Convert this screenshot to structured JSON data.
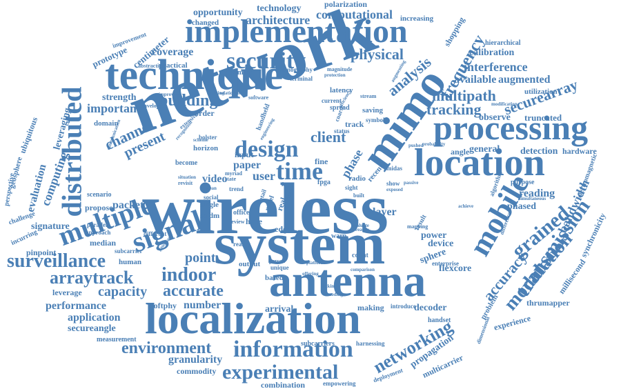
{
  "cloud": {
    "color": "#4a7fb5",
    "background": "#ffffff",
    "words": {
      "network": "network",
      "wireless": "wireless",
      "system": "system",
      "localization": "localization",
      "antenna": "antenna",
      "implementation": "implementation",
      "technique": "technique",
      "processing": "processing",
      "location": "location",
      "mimo": "mimo",
      "mobile": "mobile",
      "distributed": "distributed",
      "multiple": "multiple",
      "signal": "signal",
      "information": "information",
      "experimental": "experimental",
      "design": "design",
      "time": "time",
      "security": "security",
      "environment": "environment",
      "arraytrack": "arraytrack",
      "indoor": "indoor",
      "accurate": "accurate",
      "surveillance": "surveillance",
      "transmission": "transmission",
      "modulation": "modulation",
      "accuracy": "accuracy",
      "grained": "grained",
      "networking": "networking",
      "frequency": "frequency",
      "analysis": "analysis",
      "multipath": "multipath",
      "tracking": "tracking",
      "securearray": "securearray",
      "computational": "computational",
      "architecture": "architecture",
      "opportunity": "opportunity",
      "technology": "technology",
      "polarization": "polarization",
      "physical": "physical",
      "interference": "interference",
      "available": "available",
      "augmented": "augmented",
      "calibration": "calibration",
      "hierarchical": "hierarchical",
      "increasing": "increasing",
      "shopping": "shopping",
      "coverage": "coverage",
      "roaming": "roaming",
      "prototype": "prototype",
      "centimeter": "centimeter",
      "improvement": "improvement",
      "abstraction": "abstraction",
      "practical": "practical",
      "tomography": "tomography",
      "magnitude": "magnitude",
      "changed": "changed",
      "building": "building",
      "strength": "strength",
      "important": "important",
      "channel": "channel",
      "present": "present",
      "computing": "computing",
      "evaluation": "evaluation",
      "leveraging": "leveraging",
      "ubiquitous": "ubiquitous",
      "geosphere": "geosphere",
      "perspective": "perspective",
      "challenge": "challenge",
      "pinpoint": "pinpoint",
      "incurring": "incurring",
      "signature": "signature",
      "median": "median",
      "propose": "propose",
      "packet": "packet",
      "video": "video",
      "point": "point",
      "leverage": "leverage",
      "capacity": "capacity",
      "performance": "performance",
      "application": "application",
      "secureangle": "secureangle",
      "measurement": "measurement",
      "softphy": "softphy",
      "number": "number",
      "granularity": "granularity",
      "commodity": "commodity",
      "combination": "combination",
      "empowering": "empowering",
      "deployment": "deployment",
      "multicarrier": "multicarrier",
      "propagation": "propagation",
      "decoder": "decoder",
      "arrival": "arrival",
      "making": "making",
      "handset": "handset",
      "problem": "problem",
      "experience": "experience",
      "thrumapper": "thrumapper",
      "millisecond": "millisecond",
      "synchronicity": "synchronicity",
      "bandwidth": "bandwidth",
      "electromagnetic": "electromagnetic",
      "phased": "phased",
      "reading": "reading",
      "purpose": "purpose",
      "power": "power",
      "device": "device",
      "result": "result",
      "sphere": "sphere",
      "flexcore": "flexcore",
      "enterprise": "enterprise",
      "layer": "layer",
      "general": "general",
      "angle": "angle",
      "detection": "detection",
      "hardware": "hardware",
      "truncated": "truncated",
      "observe": "observe",
      "utilization": "utilization",
      "client": "client",
      "phase": "phase",
      "user": "user",
      "paper": "paper",
      "input": "input",
      "order": "order",
      "domain": "domain",
      "horizon": "horizon",
      "become": "become",
      "subcarrier": "subcarrier",
      "human": "human",
      "scenario": "scenario",
      "parallel": "parallel",
      "approach": "approach",
      "different": "different",
      "output": "output",
      "based": "based",
      "edge": "edge",
      "have": "have",
      "reality": "reality",
      "count": "count",
      "latency": "latency",
      "current": "current",
      "spread": "spread",
      "track": "track",
      "saving": "saving",
      "symbol": "symbol",
      "radio": "radio",
      "recent": "recent",
      "show": "show",
      "sight": "sight",
      "fine": "fine",
      "midas": "midas",
      "subcarriers": "subcarriers",
      "harnessing": "harnessing",
      "introduce": "introduce",
      "terminal": "terminal",
      "software": "software",
      "handheld": "handheld",
      "bolster": "bolster",
      "single": "single",
      "social": "social",
      "sefdm": "sefdm",
      "state": "state",
      "retail": "retail",
      "office": "office",
      "warp": "warp",
      "coarse": "coarse",
      "status": "status",
      "mapping": "mapping",
      "envelope": "envelope",
      "extensive": "extensive",
      "protection": "protection",
      "efficiency": "efficiency",
      "simultaneous": "simultaneous",
      "reader": "reader",
      "passive": "passive",
      "fpga": "fpga",
      "free": "free",
      "novel": "novel",
      "real": "real",
      "built": "built",
      "fade": "fade",
      "stream": "stream",
      "trend": "trend",
      "clear": "clear",
      "wall": "wall",
      "review": "review",
      "myriad": "myriad",
      "situation": "situation",
      "revisit": "revisit",
      "glean": "glean",
      "gaussian": "gaussian",
      "recognition": "recognition",
      "auditing": "auditing",
      "unique": "unique",
      "person": "person",
      "modification": "modification",
      "improving": "improving",
      "scheme": "scheme",
      "relationship": "relationship",
      "engineering": "engineering",
      "exposed": "exposed",
      "evaluate": "evaluate",
      "probability": "probability",
      "communication": "communication",
      "dimensional": "dimensional",
      "difference": "difference",
      "algorithm": "algorithm",
      "platform": "platform",
      "comparison": "comparison",
      "augmenting": "augmenting",
      "pushed": "pushed",
      "achieve": "achieve",
      "lacking": "lacking",
      "decoding": "decoding",
      "offering": "offering"
    }
  }
}
